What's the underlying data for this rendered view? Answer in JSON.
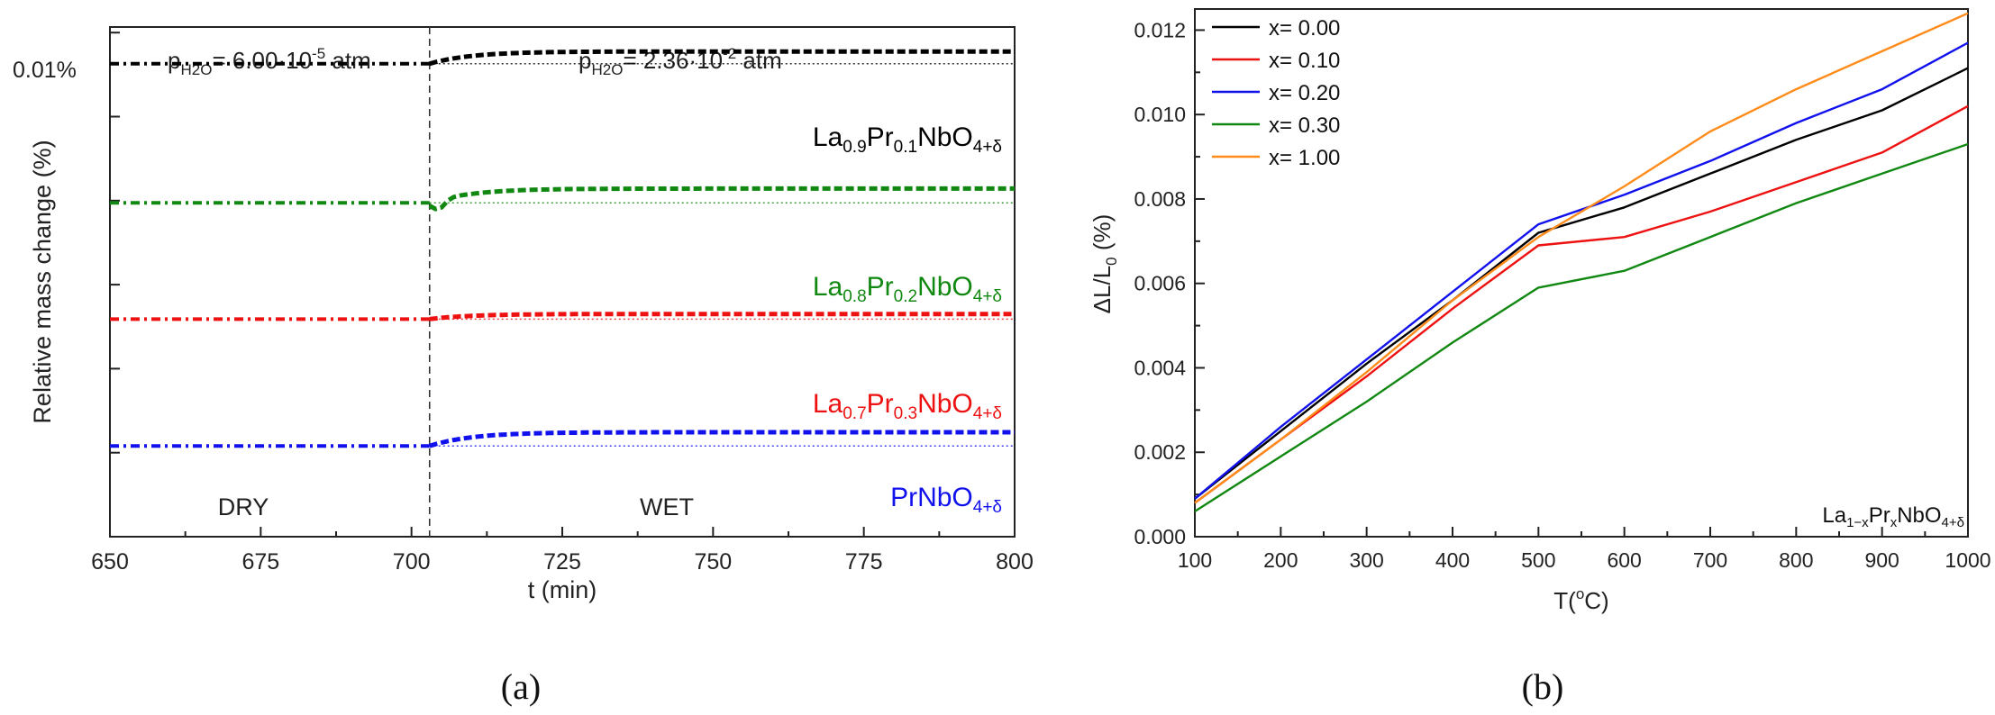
{
  "chart_data": [
    {
      "type": "line",
      "panel_label": "(a)",
      "xlabel": "t (min)",
      "ylabel": "Relative mass change (%)",
      "xlim": [
        650,
        800
      ],
      "ylim": [
        0,
        1
      ],
      "xticks": [
        "650",
        "675",
        "700",
        "725",
        "750",
        "775",
        "800"
      ],
      "scale_label": "0.01%",
      "switch_time": 703,
      "regions": {
        "dry": "DRY",
        "wet": "WET"
      },
      "annotations": {
        "dry_p": {
          "main": "p",
          "sub": "H2O",
          "mid": "= 6.00·10",
          "sup": "-5",
          "tail": " atm"
        },
        "wet_p": {
          "main": "p",
          "sub": "H2O",
          "mid": "= 2.36·10",
          "sup": "-2",
          "tail": " atm"
        }
      },
      "series": [
        {
          "name": "La0.9Pr0.1NbO4+δ",
          "color": "#000000",
          "dry": 0.928,
          "wet": 0.952,
          "dip": 0,
          "label": [
            {
              "t": "La",
              "k": "n"
            },
            {
              "t": "0.9",
              "k": "s"
            },
            {
              "t": "Pr",
              "k": "n"
            },
            {
              "t": "0.1",
              "k": "s"
            },
            {
              "t": "NbO",
              "k": "n"
            },
            {
              "t": "4+δ",
              "k": "s"
            }
          ]
        },
        {
          "name": "La0.8Pr0.2NbO4+δ",
          "color": "#118811",
          "dry": 0.655,
          "wet": 0.683,
          "dip": 0.018,
          "label": [
            {
              "t": "La",
              "k": "n"
            },
            {
              "t": "0.8",
              "k": "s"
            },
            {
              "t": "Pr",
              "k": "n"
            },
            {
              "t": "0.2",
              "k": "s"
            },
            {
              "t": "NbO",
              "k": "n"
            },
            {
              "t": "4+δ",
              "k": "s"
            }
          ]
        },
        {
          "name": "La0.7Pr0.3NbO4+δ",
          "color": "#ee1111",
          "dry": 0.427,
          "wet": 0.437,
          "dip": 0,
          "label": [
            {
              "t": "La",
              "k": "n"
            },
            {
              "t": "0.7",
              "k": "s"
            },
            {
              "t": "Pr",
              "k": "n"
            },
            {
              "t": "0.3",
              "k": "s"
            },
            {
              "t": "NbO",
              "k": "n"
            },
            {
              "t": "4+δ",
              "k": "s"
            }
          ]
        },
        {
          "name": "PrNbO4+δ",
          "color": "#1111ee",
          "dry": 0.178,
          "wet": 0.205,
          "dip": 0,
          "label": [
            {
              "t": "PrNbO",
              "k": "n"
            },
            {
              "t": "4+δ",
              "k": "s"
            }
          ]
        }
      ]
    },
    {
      "type": "line",
      "panel_label": "(b)",
      "xlabel": {
        "main": "T(",
        "sup": "o",
        "tail": "C)"
      },
      "ylabel": {
        "main": "ΔL/L",
        "sub": "0",
        "tail": " (%)"
      },
      "xlim": [
        100,
        1000
      ],
      "ylim": [
        0,
        0.0125
      ],
      "xticks": [
        "100",
        "200",
        "300",
        "400",
        "500",
        "600",
        "700",
        "800",
        "900",
        "1000"
      ],
      "yticks": [
        "0.000",
        "0.002",
        "0.004",
        "0.006",
        "0.008",
        "0.010",
        "0.012"
      ],
      "corner_label": [
        {
          "t": "La",
          "k": "n"
        },
        {
          "t": "1−x",
          "k": "s"
        },
        {
          "t": "Pr",
          "k": "n"
        },
        {
          "t": "x",
          "k": "s"
        },
        {
          "t": "NbO",
          "k": "n"
        },
        {
          "t": "4+δ",
          "k": "s"
        }
      ],
      "x": [
        100,
        200,
        300,
        400,
        500,
        600,
        700,
        800,
        900,
        1000
      ],
      "series": [
        {
          "name": "x= 0.00",
          "color": "#000000",
          "values": [
            0.0009,
            0.0025,
            0.0041,
            0.0056,
            0.0072,
            0.0078,
            0.0086,
            0.0094,
            0.0101,
            0.0111
          ]
        },
        {
          "name": "x= 0.10",
          "color": "#ee1111",
          "values": [
            0.0008,
            0.0023,
            0.0038,
            0.0054,
            0.0069,
            0.0071,
            0.0077,
            0.0084,
            0.0091,
            0.0102
          ]
        },
        {
          "name": "x= 0.20",
          "color": "#1111ee",
          "values": [
            0.0009,
            0.0026,
            0.0042,
            0.0058,
            0.0074,
            0.0081,
            0.0089,
            0.0098,
            0.0106,
            0.0117
          ]
        },
        {
          "name": "x= 0.30",
          "color": "#118811",
          "values": [
            0.0006,
            0.0019,
            0.0032,
            0.0046,
            0.0059,
            0.0063,
            0.0071,
            0.0079,
            0.0086,
            0.0093
          ]
        },
        {
          "name": "x= 1.00",
          "color": "#ff8c1a",
          "values": [
            0.0008,
            0.0023,
            0.0039,
            0.0056,
            0.0071,
            0.0083,
            0.0096,
            0.0106,
            0.0115,
            0.0124
          ]
        }
      ]
    }
  ]
}
